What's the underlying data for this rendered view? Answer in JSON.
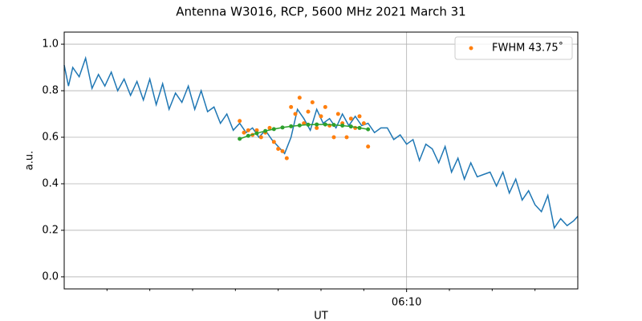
{
  "chart_data": {
    "type": "line",
    "title": "Antenna W3016, RCP, 5600 MHz 2021 March 31",
    "xlabel": "UT",
    "ylabel": "a.u.",
    "xlim": [
      2,
      14
    ],
    "ylim": [
      -0.052,
      1.052
    ],
    "xticks": [
      {
        "value": 10,
        "label": "06:10"
      }
    ],
    "xminor_ticks": [
      3,
      4,
      5,
      6,
      7,
      8,
      9,
      11,
      12,
      13
    ],
    "yticks": [
      {
        "value": 0,
        "label": "0.0"
      },
      {
        "value": 0.2,
        "label": "0.2"
      },
      {
        "value": 0.4,
        "label": "0.4"
      },
      {
        "value": 0.6,
        "label": "0.6"
      },
      {
        "value": 0.8,
        "label": "0.8"
      },
      {
        "value": 1,
        "label": "1.0"
      }
    ],
    "grid": true,
    "legend": "upper right",
    "series": [
      {
        "color": "#1f77b4",
        "style": "line",
        "x": [
          2.0,
          2.1,
          2.2,
          2.35,
          2.5,
          2.65,
          2.8,
          2.95,
          3.1,
          3.25,
          3.4,
          3.55,
          3.7,
          3.85,
          4.0,
          4.15,
          4.3,
          4.45,
          4.6,
          4.75,
          4.9,
          5.05,
          5.2,
          5.35,
          5.5,
          5.65,
          5.8,
          5.95,
          6.1,
          6.25,
          6.4,
          6.55,
          6.7,
          6.85,
          7.0,
          7.15,
          7.3,
          7.45,
          7.6,
          7.75,
          7.9,
          8.05,
          8.2,
          8.35,
          8.5,
          8.65,
          8.8,
          8.95,
          9.1,
          9.25,
          9.4,
          9.55,
          9.7,
          9.85,
          10.0,
          10.15,
          10.3,
          10.45,
          10.6,
          10.75,
          10.9,
          11.05,
          11.2,
          11.35,
          11.5,
          11.65,
          11.8,
          11.95,
          12.1,
          12.25,
          12.4,
          12.55,
          12.7,
          12.85,
          13.0,
          13.15,
          13.3,
          13.45,
          13.6,
          13.75,
          13.9,
          14.0
        ],
        "values": [
          0.91,
          0.82,
          0.9,
          0.86,
          0.94,
          0.81,
          0.87,
          0.82,
          0.88,
          0.8,
          0.85,
          0.78,
          0.84,
          0.76,
          0.85,
          0.74,
          0.83,
          0.72,
          0.79,
          0.75,
          0.82,
          0.72,
          0.8,
          0.71,
          0.73,
          0.66,
          0.7,
          0.63,
          0.66,
          0.62,
          0.64,
          0.6,
          0.63,
          0.59,
          0.56,
          0.53,
          0.6,
          0.72,
          0.68,
          0.63,
          0.72,
          0.66,
          0.68,
          0.64,
          0.7,
          0.65,
          0.69,
          0.65,
          0.66,
          0.62,
          0.64,
          0.64,
          0.59,
          0.61,
          0.57,
          0.59,
          0.5,
          0.57,
          0.55,
          0.49,
          0.56,
          0.45,
          0.51,
          0.42,
          0.49,
          0.43,
          0.44,
          0.45,
          0.39,
          0.45,
          0.36,
          0.42,
          0.33,
          0.37,
          0.31,
          0.28,
          0.35,
          0.21,
          0.25,
          0.22,
          0.24,
          0.26
        ]
      },
      {
        "name": "FWHM 43.75˚",
        "color": "#ff7f0e",
        "style": "points",
        "x": [
          6.1,
          6.2,
          6.3,
          6.4,
          6.5,
          6.6,
          6.7,
          6.8,
          6.9,
          7.0,
          7.1,
          7.2,
          7.3,
          7.4,
          7.5,
          7.6,
          7.7,
          7.8,
          7.9,
          8.0,
          8.1,
          8.2,
          8.3,
          8.4,
          8.5,
          8.6,
          8.7,
          8.8,
          8.9,
          9.0,
          9.1
        ],
        "values": [
          0.67,
          0.62,
          0.63,
          0.61,
          0.63,
          0.6,
          0.62,
          0.64,
          0.58,
          0.55,
          0.54,
          0.51,
          0.73,
          0.7,
          0.77,
          0.66,
          0.71,
          0.75,
          0.64,
          0.69,
          0.73,
          0.65,
          0.6,
          0.7,
          0.66,
          0.6,
          0.68,
          0.64,
          0.69,
          0.66,
          0.56
        ]
      },
      {
        "color": "#2ca02c",
        "style": "line-points",
        "x": [
          6.1,
          6.3,
          6.5,
          6.7,
          6.9,
          7.1,
          7.3,
          7.5,
          7.7,
          7.9,
          8.1,
          8.3,
          8.5,
          8.7,
          8.9,
          9.1
        ],
        "values": [
          0.593,
          0.606,
          0.617,
          0.627,
          0.635,
          0.642,
          0.647,
          0.651,
          0.654,
          0.655,
          0.655,
          0.653,
          0.65,
          0.646,
          0.64,
          0.634
        ]
      }
    ]
  }
}
